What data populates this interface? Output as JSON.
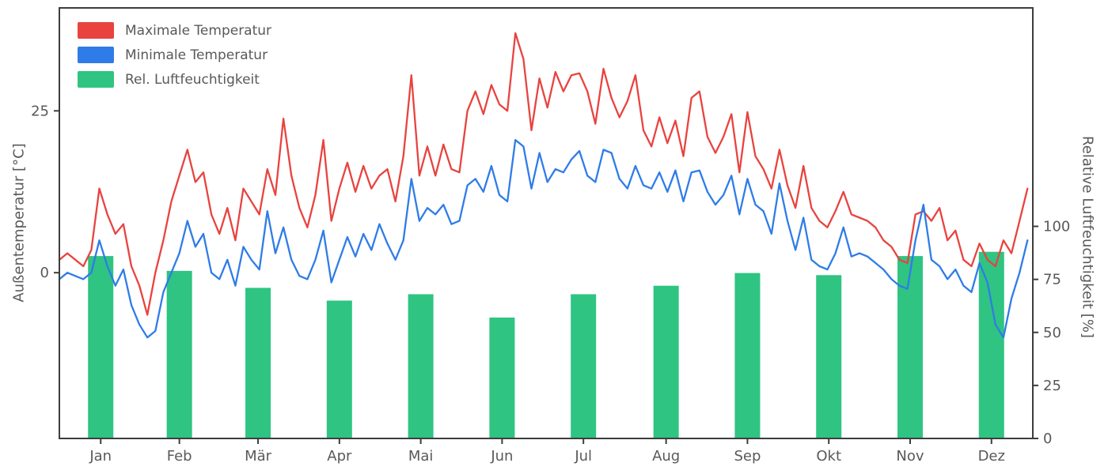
{
  "chart_data": {
    "type": "line+bar",
    "title": "",
    "left_axis": {
      "label": "Außentemperatur [°C]",
      "ticks": [
        0,
        25
      ],
      "domain": [
        -25.6,
        40.9
      ]
    },
    "right_axis": {
      "label": "Relative Luftfeuchtigkeit [%]",
      "ticks": [
        0,
        25,
        50,
        75,
        100
      ],
      "domain": [
        0,
        203
      ]
    },
    "x_axis": {
      "tick_labels": [
        "Jan",
        "Feb",
        "Mär",
        "Apr",
        "Mai",
        "Jun",
        "Jul",
        "Aug",
        "Sep",
        "Okt",
        "Nov",
        "Dez"
      ],
      "tick_days": [
        15.5,
        45,
        74.5,
        105,
        135.5,
        166,
        196.5,
        227.5,
        258,
        288.5,
        319,
        349.5
      ],
      "domain_days": [
        0,
        365
      ]
    },
    "legend": [
      {
        "label": "Maximale Temperatur",
        "color": "#e8433f"
      },
      {
        "label": "Minimale Temperatur",
        "color": "#2f7ce8"
      },
      {
        "label": "Rel. Luftfeuchtigkeit",
        "color": "#2fc482"
      }
    ],
    "series": [
      {
        "name": "Maximale Temperatur",
        "type": "line",
        "axis": "left",
        "color": "#e8433f",
        "x_start_day": 0,
        "x_step_days": 3,
        "values": [
          2,
          3,
          2,
          1,
          3.5,
          13,
          9,
          6,
          7.5,
          1,
          -2,
          -6.5,
          0,
          5,
          11,
          15,
          19,
          14,
          15.5,
          9,
          6,
          10,
          5,
          13,
          11,
          9,
          16,
          12,
          23.8,
          15,
          10,
          7,
          12,
          20.5,
          8,
          13,
          17,
          12.5,
          16.5,
          13,
          15,
          16,
          11,
          18,
          30.5,
          15,
          19.5,
          15,
          19.8,
          16,
          15.5,
          25,
          28,
          24.5,
          29,
          26,
          25,
          37,
          33,
          22,
          30,
          25.5,
          31,
          28,
          30.5,
          30.8,
          28,
          23,
          31.5,
          27,
          24,
          26.5,
          30.5,
          22,
          19.5,
          24,
          20,
          23.5,
          18,
          27,
          28,
          21,
          18.5,
          21,
          24.5,
          15.5,
          24.8,
          18,
          16,
          13,
          19,
          13.5,
          10,
          16.5,
          10,
          8,
          7,
          9.5,
          12.5,
          9,
          8.5,
          8,
          7,
          5,
          4,
          2,
          1.5,
          9,
          9.5,
          8,
          10,
          5,
          6.5,
          2,
          1,
          4.5,
          2,
          1,
          5,
          3,
          8,
          13
        ]
      },
      {
        "name": "Minimale Temperatur",
        "type": "line",
        "axis": "left",
        "color": "#2f7ce8",
        "x_start_day": 0,
        "x_step_days": 3,
        "values": [
          -1,
          0,
          -0.5,
          -1,
          0,
          5,
          1,
          -2,
          0.5,
          -5,
          -8,
          -10,
          -9,
          -3,
          0,
          3,
          8,
          4,
          6,
          0,
          -1,
          2,
          -2,
          4,
          2,
          0.5,
          9.5,
          3,
          7,
          2,
          -0.5,
          -1,
          2,
          6.5,
          -1.5,
          2,
          5.5,
          2.5,
          6,
          3.5,
          7.5,
          4.5,
          2,
          5,
          14.5,
          8,
          10,
          9,
          10.5,
          7.5,
          8,
          13.5,
          14.5,
          12.5,
          16.5,
          12,
          11,
          20.5,
          19.5,
          13,
          18.5,
          14,
          16,
          15.5,
          17.5,
          18.8,
          15,
          14,
          19,
          18.5,
          14.5,
          13,
          16.5,
          13.5,
          13,
          15.5,
          12.5,
          15.8,
          11,
          15.5,
          15.8,
          12.5,
          10.5,
          12,
          15,
          9,
          14.5,
          10.5,
          9.5,
          6,
          13.8,
          8,
          3.5,
          8.5,
          2,
          1,
          0.5,
          3,
          7,
          2.5,
          3,
          2.5,
          1.5,
          0.5,
          -1,
          -2,
          -2.5,
          5,
          10.5,
          2,
          1,
          -1,
          0.5,
          -2,
          -3,
          1.5,
          -1.5,
          -8,
          -10,
          -4,
          0,
          5
        ]
      },
      {
        "name": "Rel. Luftfeuchtigkeit",
        "type": "bar",
        "axis": "right",
        "color": "#2fc482",
        "x": [
          15.5,
          45,
          74.5,
          105,
          135.5,
          166,
          196.5,
          227.5,
          258,
          288.5,
          319,
          349.5
        ],
        "bar_width_days": 9.5,
        "values": [
          86,
          79,
          71,
          65,
          68,
          57,
          68,
          72,
          78,
          77,
          86,
          88
        ]
      }
    ],
    "style": {
      "spine_color": "#3d3d3d",
      "text_color": "#595959",
      "grid": false,
      "legend_position": "top-left"
    }
  }
}
